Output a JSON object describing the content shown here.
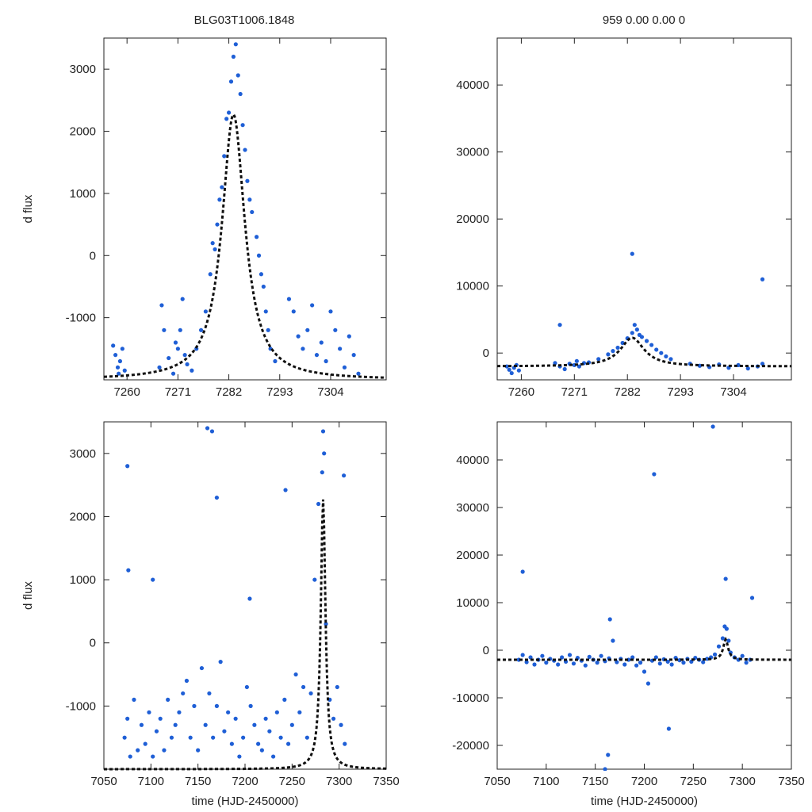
{
  "figure": {
    "title_left": "BLG03T1006.1848",
    "title_right": "959  0.00  0.00  0",
    "point_color": "#1f5fd6",
    "fit_color": "#111111"
  },
  "chart_data": [
    {
      "id": "top-left",
      "type": "scatter",
      "title": "BLG03T1006.1848",
      "xlabel": "",
      "ylabel": "d flux",
      "xlim": [
        7255,
        7316
      ],
      "ylim": [
        -2000,
        3500
      ],
      "xticks": [
        7260,
        7271,
        7282,
        7293,
        7304
      ],
      "yticks": [
        -1000,
        0,
        1000,
        2000,
        3000
      ],
      "grid": false,
      "series": [
        {
          "name": "observations",
          "x": [
            7257,
            7257.5,
            7258,
            7258.2,
            7258.5,
            7259,
            7259.5,
            7267,
            7267.5,
            7268,
            7269,
            7270,
            7270.5,
            7271,
            7271.5,
            7272,
            7272.5,
            7273,
            7274,
            7275,
            7276,
            7277,
            7278,
            7278.5,
            7279,
            7279.5,
            7280,
            7280.5,
            7281,
            7281.5,
            7282,
            7282.5,
            7283,
            7283.5,
            7284,
            7284.5,
            7285,
            7285.5,
            7286,
            7286.5,
            7287,
            7288,
            7288.5,
            7289,
            7289.5,
            7290,
            7290.5,
            7291,
            7292,
            7295,
            7296,
            7297,
            7298,
            7299,
            7300,
            7301,
            7302,
            7303,
            7304,
            7305,
            7306,
            7307,
            7308,
            7309,
            7310
          ],
          "y": [
            -1450,
            -1600,
            -1800,
            -1900,
            -1700,
            -1500,
            -1850,
            -1800,
            -800,
            -1200,
            -1650,
            -1900,
            -1400,
            -1500,
            -1200,
            -700,
            -1600,
            -1750,
            -1850,
            -1500,
            -1200,
            -900,
            -300,
            200,
            100,
            500,
            900,
            1100,
            1600,
            2200,
            2300,
            2800,
            3200,
            3400,
            2900,
            2600,
            2100,
            1700,
            1200,
            900,
            700,
            300,
            0,
            -300,
            -500,
            -900,
            -1200,
            -1500,
            -1700,
            -700,
            -900,
            -1300,
            -1500,
            -1200,
            -800,
            -1600,
            -1400,
            -1700,
            -900,
            -1200,
            -1500,
            -1800,
            -1300,
            -1600,
            -1900
          ]
        },
        {
          "name": "model",
          "kind": "lorentzian-fit",
          "peak_x": 7283,
          "peak_y": 2270,
          "baseline": -2000,
          "width": 3
        }
      ]
    },
    {
      "id": "top-right",
      "type": "scatter",
      "title": "959  0.00  0.00  0",
      "xlabel": "",
      "ylabel": "",
      "xlim": [
        7255,
        7316
      ],
      "ylim": [
        -4000,
        47000
      ],
      "xticks": [
        7260,
        7271,
        7282,
        7293,
        7304
      ],
      "yticks": [
        0,
        10000,
        20000,
        30000,
        40000
      ],
      "grid": false,
      "series": [
        {
          "name": "observations",
          "x": [
            7257,
            7257.5,
            7258,
            7258.5,
            7259,
            7259.5,
            7267,
            7268,
            7269,
            7270,
            7271,
            7271.5,
            7272,
            7273,
            7274,
            7276,
            7278,
            7279,
            7280,
            7281,
            7282,
            7283,
            7283.5,
            7284,
            7284.5,
            7285,
            7286,
            7287,
            7288,
            7289,
            7290,
            7291,
            7295,
            7297,
            7299,
            7301,
            7303,
            7305,
            7307,
            7309,
            7310,
            7268,
            7283,
            7310
          ],
          "y": [
            -2000,
            -2500,
            -3000,
            -2200,
            -1800,
            -2600,
            -1500,
            -2000,
            -2400,
            -1600,
            -1800,
            -1200,
            -2000,
            -1500,
            -1400,
            -900,
            -200,
            300,
            800,
            1500,
            2200,
            3000,
            4200,
            3500,
            2700,
            2400,
            1800,
            1200,
            500,
            0,
            -500,
            -900,
            -1600,
            -1900,
            -2100,
            -1700,
            -2200,
            -1800,
            -2300,
            -2000,
            -1600,
            4200,
            14800,
            11000
          ]
        },
        {
          "name": "model",
          "kind": "lorentzian-fit",
          "peak_x": 7283,
          "peak_y": 2270,
          "baseline": -2000,
          "width": 3
        }
      ]
    },
    {
      "id": "bottom-left",
      "type": "scatter",
      "title": "",
      "xlabel": "time (HJD-2450000)",
      "ylabel": "d flux",
      "xlim": [
        7050,
        7350
      ],
      "ylim": [
        -2000,
        3500
      ],
      "xticks": [
        7050,
        7100,
        7150,
        7200,
        7250,
        7300,
        7350
      ],
      "yticks": [
        -1000,
        0,
        1000,
        2000,
        3000
      ],
      "grid": false,
      "series": [
        {
          "name": "observations",
          "x": [
            7072,
            7075,
            7078,
            7082,
            7086,
            7090,
            7094,
            7098,
            7102,
            7106,
            7110,
            7114,
            7118,
            7122,
            7126,
            7130,
            7134,
            7138,
            7142,
            7146,
            7150,
            7154,
            7158,
            7162,
            7166,
            7170,
            7174,
            7178,
            7182,
            7186,
            7190,
            7194,
            7198,
            7202,
            7206,
            7210,
            7214,
            7218,
            7222,
            7226,
            7230,
            7234,
            7238,
            7242,
            7246,
            7250,
            7254,
            7258,
            7262,
            7266,
            7270,
            7274,
            7278,
            7282,
            7286,
            7290,
            7294,
            7298,
            7302,
            7306,
            7075,
            7076,
            7102,
            7160,
            7165,
            7170,
            7205,
            7243,
            7283,
            7284,
            7305
          ],
          "y": [
            -1500,
            -1200,
            -1800,
            -900,
            -1700,
            -1300,
            -1600,
            -1100,
            -1800,
            -1400,
            -1200,
            -1700,
            -900,
            -1500,
            -1300,
            -1100,
            -800,
            -600,
            -1500,
            -1000,
            -1700,
            -400,
            -1300,
            -800,
            -1500,
            -1000,
            -300,
            -1400,
            -1100,
            -1600,
            -1200,
            -1800,
            -1500,
            -700,
            -1000,
            -1300,
            -1600,
            -1700,
            -1200,
            -1400,
            -1800,
            -1100,
            -1500,
            -900,
            -1600,
            -1300,
            -500,
            -1100,
            -700,
            -1500,
            -800,
            1000,
            2200,
            2700,
            300,
            -900,
            -1200,
            -700,
            -1300,
            -1600,
            2800,
            1150,
            1000,
            3400,
            3350,
            2300,
            700,
            2420,
            3350,
            3000,
            2650
          ]
        },
        {
          "name": "model",
          "kind": "lorentzian-fit",
          "peak_x": 7283,
          "peak_y": 2270,
          "baseline": -2000,
          "width": 3
        }
      ]
    },
    {
      "id": "bottom-right",
      "type": "scatter",
      "title": "",
      "xlabel": "time (HJD-2450000)",
      "ylabel": "",
      "xlim": [
        7050,
        7350
      ],
      "ylim": [
        -25000,
        48000
      ],
      "xticks": [
        7050,
        7100,
        7150,
        7200,
        7250,
        7300,
        7350
      ],
      "yticks": [
        -20000,
        -10000,
        0,
        10000,
        20000,
        30000,
        40000
      ],
      "grid": false,
      "series": [
        {
          "name": "observations",
          "x": [
            7072,
            7076,
            7080,
            7084,
            7088,
            7092,
            7096,
            7100,
            7104,
            7108,
            7112,
            7116,
            7120,
            7124,
            7128,
            7132,
            7136,
            7140,
            7144,
            7148,
            7152,
            7156,
            7160,
            7164,
            7168,
            7172,
            7176,
            7180,
            7184,
            7188,
            7192,
            7196,
            7200,
            7204,
            7208,
            7212,
            7216,
            7220,
            7224,
            7228,
            7232,
            7236,
            7240,
            7244,
            7248,
            7252,
            7256,
            7260,
            7264,
            7268,
            7272,
            7276,
            7280,
            7282,
            7284,
            7286,
            7288,
            7292,
            7296,
            7300,
            7304,
            7308,
            7076,
            7165,
            7210,
            7163,
            7225,
            7270,
            7283,
            7310,
            7160
          ],
          "y": [
            -2000,
            -1000,
            -2500,
            -1500,
            -3000,
            -2000,
            -1200,
            -2600,
            -1800,
            -2200,
            -3000,
            -1500,
            -2400,
            -1000,
            -2800,
            -1600,
            -2200,
            -3200,
            -1400,
            -2000,
            -2600,
            -1200,
            -2300,
            -1700,
            2000,
            -2500,
            -1800,
            -3000,
            -2000,
            -1500,
            -3200,
            -2600,
            -4500,
            -7000,
            -2200,
            -1500,
            -2800,
            -1900,
            -2400,
            -3000,
            -1600,
            -2100,
            -2600,
            -1800,
            -2400,
            -1600,
            -2000,
            -2500,
            -1800,
            -1500,
            -900,
            800,
            2500,
            5000,
            4500,
            2000,
            -500,
            -1500,
            -2000,
            -1200,
            -2600,
            -2000,
            16500,
            6500,
            37000,
            -22000,
            -16500,
            47000,
            15000,
            11000,
            -25000
          ]
        },
        {
          "name": "model",
          "kind": "lorentzian-fit",
          "peak_x": 7283,
          "peak_y": 2270,
          "baseline": -2000,
          "width": 3
        }
      ]
    }
  ]
}
